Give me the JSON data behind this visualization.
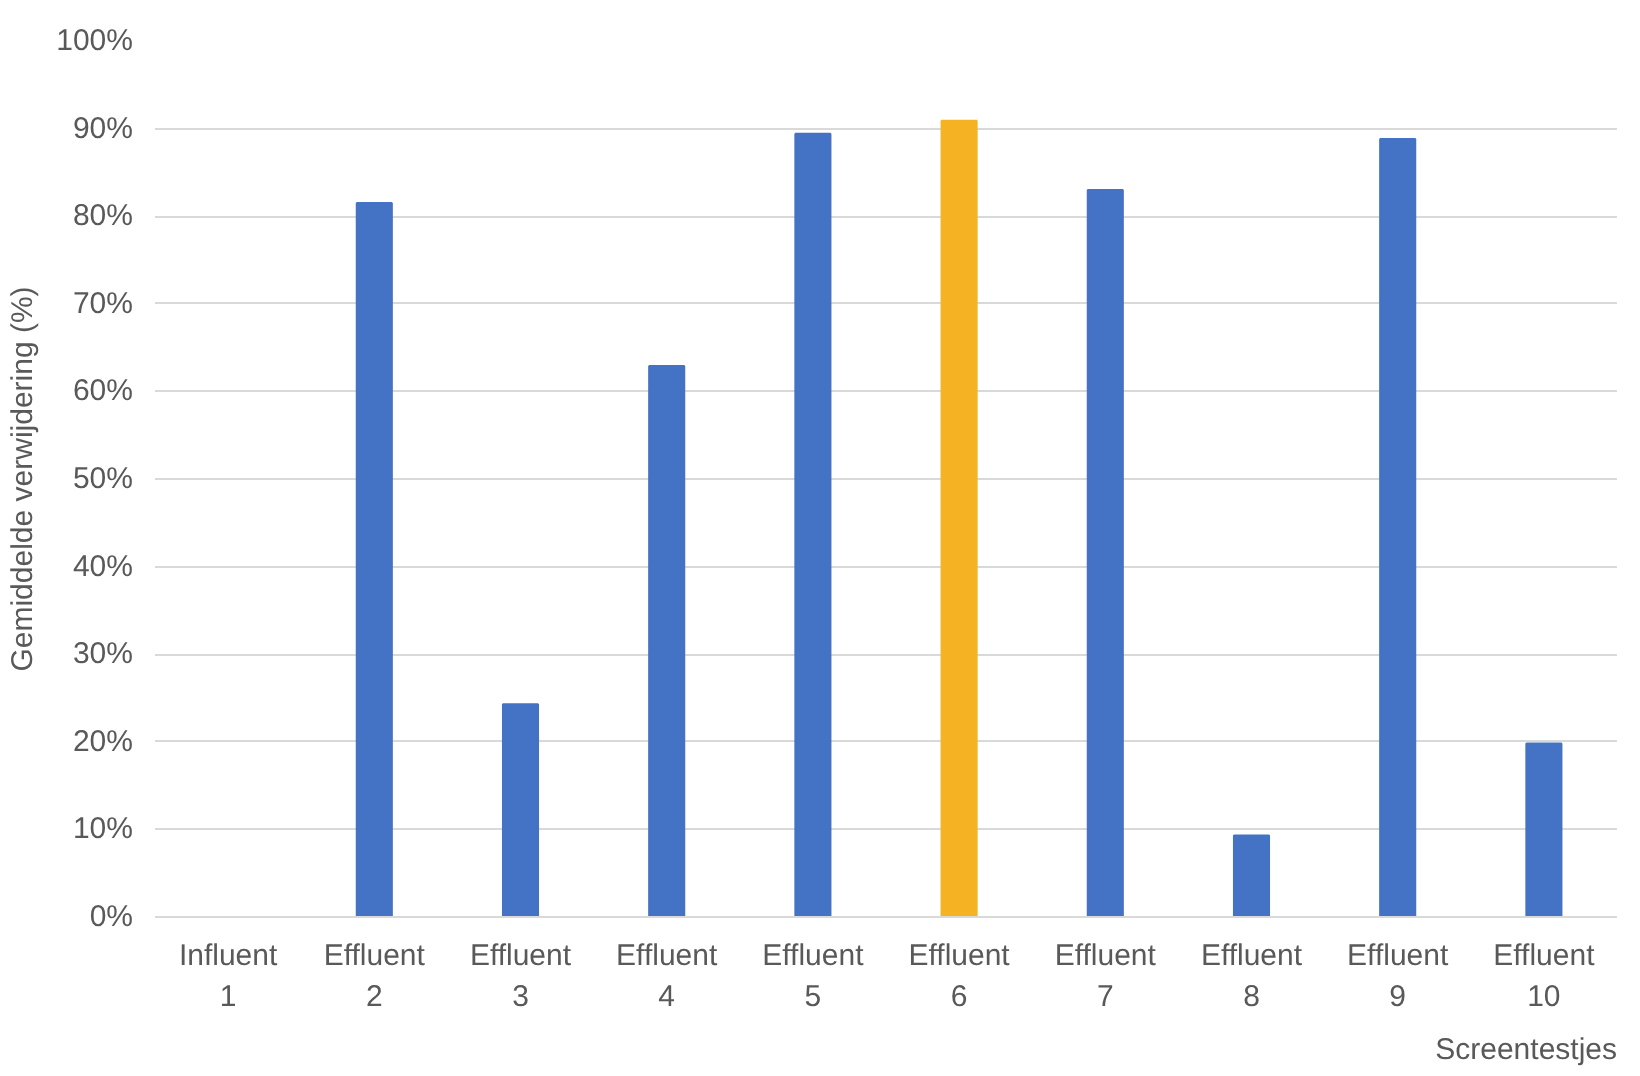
{
  "chart_data": {
    "type": "bar",
    "xlabel": "Screentestjes",
    "ylabel": "Gemiddelde verwijdering (%)",
    "categories": [
      "Influent\n1",
      "Effluent\n2",
      "Effluent\n3",
      "Effluent\n4",
      "Effluent\n5",
      "Effluent\n6",
      "Effluent\n7",
      "Effluent\n8",
      "Effluent\n9",
      "Effluent\n10"
    ],
    "values": [
      0,
      81.5,
      24.3,
      62.9,
      89.4,
      90.9,
      83.0,
      9.3,
      88.8,
      19.8
    ],
    "colors": [
      "#4472c4",
      "#4472c4",
      "#4472c4",
      "#4472c4",
      "#4472c4",
      "#f5b324",
      "#4472c4",
      "#4472c4",
      "#4472c4",
      "#4472c4"
    ],
    "ylim": [
      0,
      100
    ],
    "yticks": [
      {
        "value": 0,
        "label": "0%"
      },
      {
        "value": 10,
        "label": "10%"
      },
      {
        "value": 20,
        "label": "20%"
      },
      {
        "value": 30,
        "label": "30%"
      },
      {
        "value": 40,
        "label": "40%"
      },
      {
        "value": 50,
        "label": "50%"
      },
      {
        "value": 60,
        "label": "60%"
      },
      {
        "value": 70,
        "label": "70%"
      },
      {
        "value": 80,
        "label": "80%"
      },
      {
        "value": 90,
        "label": "90%"
      },
      {
        "value": 100,
        "label": "100%"
      }
    ],
    "grid": "y"
  }
}
